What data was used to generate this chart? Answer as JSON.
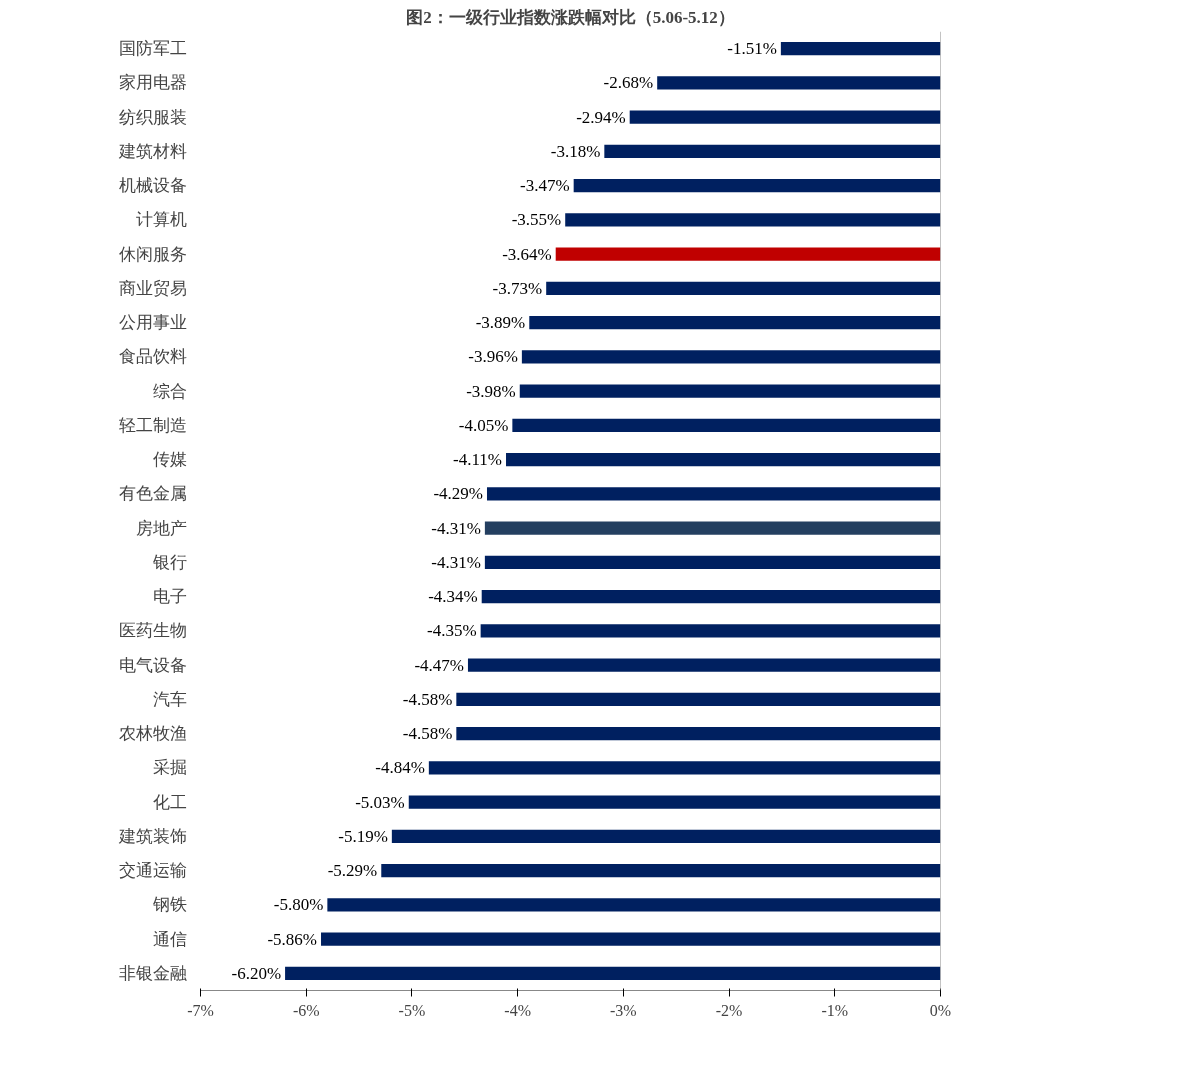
{
  "chart_data": {
    "type": "bar",
    "orientation": "horizontal",
    "title": "图2：一级行业指数涨跌幅对比（5.06-5.12）",
    "categories": [
      "国防军工",
      "家用电器",
      "纺织服装",
      "建筑材料",
      "机械设备",
      "计算机",
      "休闲服务",
      "商业贸易",
      "公用事业",
      "食品饮料",
      "综合",
      "轻工制造",
      "传媒",
      "有色金属",
      "房地产",
      "银行",
      "电子",
      "医药生物",
      "电气设备",
      "汽车",
      "农林牧渔",
      "采掘",
      "化工",
      "建筑装饰",
      "交通运输",
      "钢铁",
      "通信",
      "非银金融"
    ],
    "values": [
      -1.51,
      -2.68,
      -2.94,
      -3.18,
      -3.47,
      -3.55,
      -3.64,
      -3.73,
      -3.89,
      -3.96,
      -3.98,
      -4.05,
      -4.11,
      -4.29,
      -4.31,
      -4.31,
      -4.34,
      -4.35,
      -4.47,
      -4.58,
      -4.58,
      -4.84,
      -5.03,
      -5.19,
      -5.29,
      -5.8,
      -5.86,
      -6.2
    ],
    "colors": [
      "#002060",
      "#002060",
      "#002060",
      "#002060",
      "#002060",
      "#002060",
      "#c00000",
      "#002060",
      "#002060",
      "#002060",
      "#002060",
      "#002060",
      "#002060",
      "#002060",
      "#243f60",
      "#002060",
      "#002060",
      "#002060",
      "#002060",
      "#002060",
      "#002060",
      "#002060",
      "#002060",
      "#002060",
      "#002060",
      "#002060",
      "#002060",
      "#002060"
    ],
    "value_labels": [
      "-1.51%",
      "-2.68%",
      "-2.94%",
      "-3.18%",
      "-3.47%",
      "-3.55%",
      "-3.64%",
      "-3.73%",
      "-3.89%",
      "-3.96%",
      "-3.98%",
      "-4.05%",
      "-4.11%",
      "-4.29%",
      "-4.31%",
      "-4.31%",
      "-4.34%",
      "-4.35%",
      "-4.47%",
      "-4.58%",
      "-4.58%",
      "-4.84%",
      "-5.03%",
      "-5.19%",
      "-5.29%",
      "-5.80%",
      "-5.86%",
      "-6.20%"
    ],
    "xlim": [
      -7,
      0
    ],
    "xticks": [
      {
        "value": -7,
        "label": "-7%"
      },
      {
        "value": -6,
        "label": "-6%"
      },
      {
        "value": -5,
        "label": "-5%"
      },
      {
        "value": -4,
        "label": "-4%"
      },
      {
        "value": -3,
        "label": "-3%"
      },
      {
        "value": -2,
        "label": "-2%"
      },
      {
        "value": -1,
        "label": "-1%"
      },
      {
        "value": 0,
        "label": "0%"
      }
    ],
    "grid": false
  }
}
